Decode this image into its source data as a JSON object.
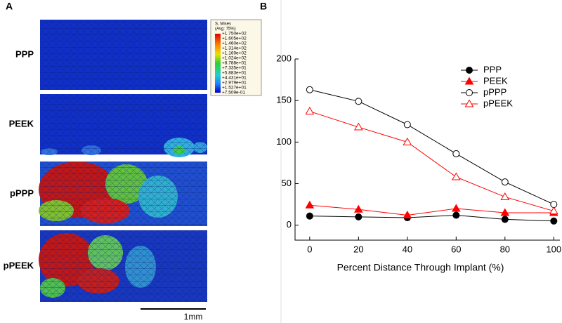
{
  "panel_a": {
    "label": "A",
    "rows": [
      "PPP",
      "PEEK",
      "pPPP",
      "pPEEK"
    ],
    "contour_legend": {
      "title": "S, Mises",
      "subtitle": "(Avg: 75%)",
      "labels": [
        "+1.750e+02",
        "+1.605e+02",
        "+1.460e+02",
        "+1.314e+02",
        "+1.169e+02",
        "+1.024e+02",
        "+8.788e+01",
        "+7.335e+01",
        "+5.883e+01",
        "+4.431e+01",
        "+2.979e+01",
        "+1.527e+01",
        "+7.509e-01"
      ]
    },
    "scale_bar": "1mm"
  },
  "chart_data": {
    "type": "line",
    "panel_label": "B",
    "x_label": "Percent Distance Through Implant (%)",
    "x": [
      0,
      20,
      40,
      60,
      80,
      100
    ],
    "series": [
      {
        "name": "PPP",
        "color": "#000000",
        "marker": "circle",
        "filled": true,
        "values": [
          11,
          10,
          9,
          12,
          7,
          5
        ]
      },
      {
        "name": "PEEK",
        "color": "#ff0000",
        "marker": "triangle",
        "filled": true,
        "values": [
          24,
          19,
          12,
          20,
          15,
          15
        ]
      },
      {
        "name": "pPPP",
        "color": "#000000",
        "marker": "circle",
        "filled": false,
        "values": [
          163,
          149,
          121,
          86,
          52,
          25
        ]
      },
      {
        "name": "pPEEK",
        "color": "#ff0000",
        "marker": "triangle",
        "filled": false,
        "values": [
          137,
          118,
          100,
          58,
          34,
          17
        ]
      }
    ],
    "xlim": [
      -6,
      102.5
    ],
    "xticks": [
      0,
      20,
      40,
      60,
      80,
      100
    ],
    "ylim": [
      -18,
      200
    ],
    "yticks": [
      0,
      50,
      100,
      150,
      200
    ],
    "legend": "upper-right"
  }
}
